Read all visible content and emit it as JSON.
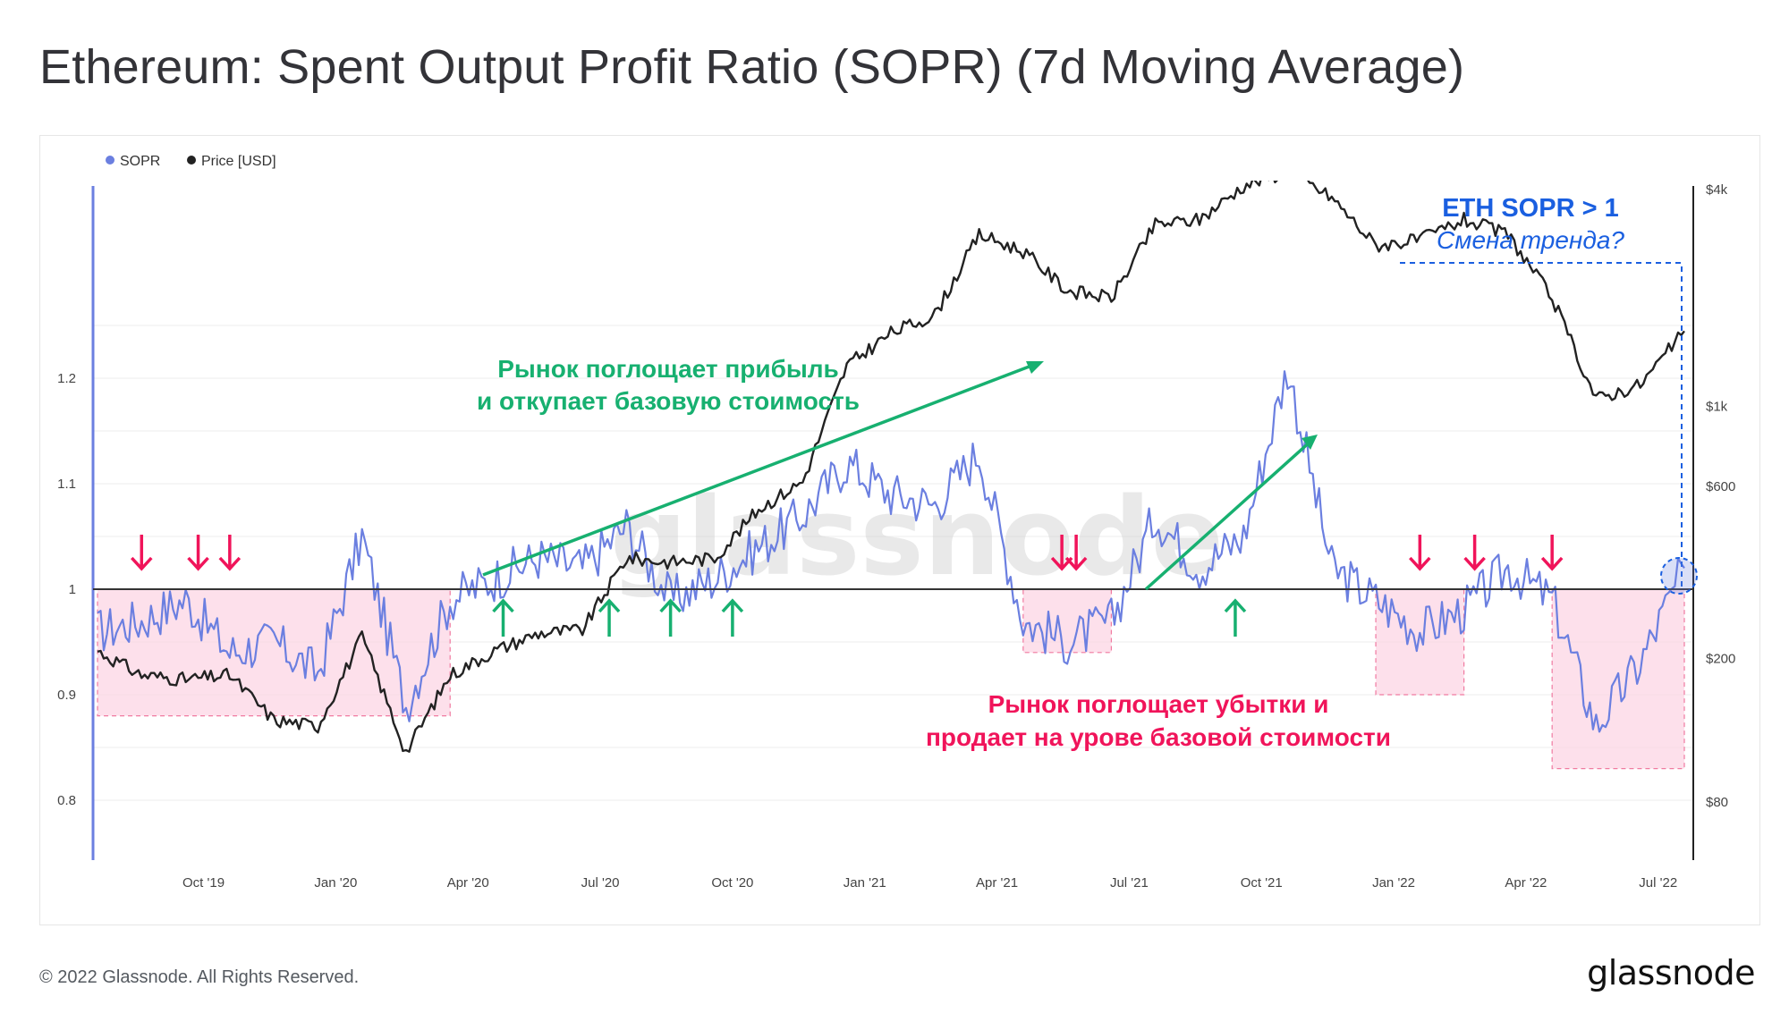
{
  "title": "Ethereum: Spent Output Profit Ratio (SOPR) (7d Moving Average)",
  "footer": {
    "copyright": "© 2022 Glassnode. All Rights Reserved.",
    "logo": "glassnode"
  },
  "watermark": "glassnode",
  "colors": {
    "sopr": "#6b7fe0",
    "price": "#222222",
    "loss_zone": "#fcd6e4",
    "green": "#17b070",
    "red": "#f0145a",
    "blue": "#1a5fe0"
  },
  "annotations": {
    "profit_text_1": "Рынок поглощает прибыль",
    "profit_text_2": "и откупает базовую стоимость",
    "loss_text_1": "Рынок поглощает убытки и",
    "loss_text_2": "продает на урове базовой стоимости",
    "eth_sopr": "ETH SOPR > 1",
    "trend_change": "Смена тренда?"
  },
  "chart_data": {
    "type": "line",
    "legend": [
      {
        "name": "SOPR",
        "color": "#6b7fe0"
      },
      {
        "name": "Price [USD]",
        "color": "#222222"
      }
    ],
    "legend_position": "top-left",
    "x_ticks": [
      "Oct '19",
      "Jan '20",
      "Apr '20",
      "Jul '20",
      "Oct '20",
      "Jan '21",
      "Apr '21",
      "Jul '21",
      "Oct '21",
      "Jan '22",
      "Apr '22",
      "Jul '22"
    ],
    "y_left": {
      "ticks": [
        "0.8",
        "0.9",
        "1",
        "1.1",
        "1.2"
      ],
      "ylim": [
        0.8,
        1.26
      ]
    },
    "y_right": {
      "ticks": [
        "$80",
        "$200",
        "$600",
        "$1k",
        "$4k"
      ],
      "scale": "log"
    },
    "baseline": 1,
    "x": [
      "2019-08",
      "2019-09",
      "2019-10",
      "2019-11",
      "2019-12",
      "2020-01",
      "2020-02",
      "2020-03",
      "2020-04",
      "2020-05",
      "2020-06",
      "2020-07",
      "2020-08",
      "2020-09",
      "2020-10",
      "2020-11",
      "2020-12",
      "2021-01",
      "2021-02",
      "2021-03",
      "2021-04",
      "2021-05",
      "2021-06",
      "2021-07",
      "2021-08",
      "2021-09",
      "2021-10",
      "2021-11",
      "2021-12",
      "2022-01",
      "2022-02",
      "2022-03",
      "2022-04",
      "2022-05",
      "2022-06",
      "2022-07",
      "2022-08"
    ],
    "series": [
      {
        "name": "SOPR",
        "axis": "left",
        "values": [
          0.96,
          0.97,
          0.99,
          0.94,
          0.95,
          0.92,
          1.05,
          0.89,
          0.99,
          1.01,
          1.03,
          1.02,
          1.06,
          0.99,
          1.01,
          1.04,
          1.07,
          1.12,
          1.09,
          1.08,
          1.13,
          0.97,
          0.95,
          0.97,
          1.07,
          1.02,
          1.05,
          1.21,
          1.02,
          0.99,
          0.96,
          0.98,
          1.02,
          0.99,
          0.87,
          0.93,
          1.02
        ]
      },
      {
        "name": "Price [USD]",
        "axis": "right",
        "values": [
          210,
          180,
          175,
          180,
          135,
          130,
          230,
          110,
          180,
          210,
          235,
          240,
          380,
          370,
          380,
          520,
          620,
          1300,
          1600,
          1800,
          3000,
          2700,
          2100,
          2000,
          3200,
          3300,
          4100,
          4500,
          3800,
          2800,
          2900,
          3300,
          3000,
          2000,
          1050,
          1150,
          1620
        ]
      }
    ],
    "loss_zones": [
      {
        "from": "2019-08",
        "to": "2020-04"
      },
      {
        "from": "2021-05",
        "to": "2021-07"
      },
      {
        "from": "2022-01",
        "to": "2022-03"
      },
      {
        "from": "2022-05",
        "to": "2022-08"
      }
    ],
    "red_arrows": [
      "2019-09",
      "2019-10",
      "2019-11",
      "2021-06",
      "2021-06",
      "2022-02",
      "2022-03",
      "2022-05"
    ],
    "green_arrows": [
      "2020-05",
      "2020-07",
      "2020-09",
      "2020-10",
      "2021-09"
    ]
  }
}
